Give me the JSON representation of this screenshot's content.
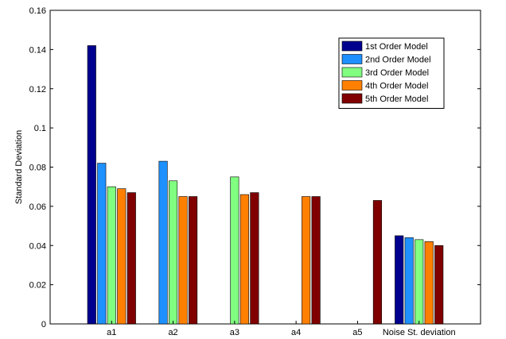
{
  "chart_data": {
    "type": "bar",
    "title": "",
    "xlabel": "",
    "ylabel": "Standard Deviation",
    "ylim": [
      0,
      0.16
    ],
    "yticks": [
      "0",
      "0.02",
      "0.04",
      "0.06",
      "0.08",
      "0.1",
      "0.12",
      "0.14",
      "0.16"
    ],
    "grid": false,
    "legend_position": "top-right",
    "categories": [
      "a1",
      "a2",
      "a3",
      "a4",
      "a5",
      "Noise St. deviation"
    ],
    "series": [
      {
        "name": "1st Order Model",
        "color": "#00008f",
        "values": [
          0.142,
          null,
          null,
          null,
          null,
          0.045
        ]
      },
      {
        "name": "2nd Order Model",
        "color": "#1e90ff",
        "values": [
          0.082,
          0.083,
          null,
          null,
          null,
          0.044
        ]
      },
      {
        "name": "3rd Order Model",
        "color": "#80ff80",
        "values": [
          0.07,
          0.073,
          0.075,
          null,
          null,
          0.043
        ]
      },
      {
        "name": "4th Order Model",
        "color": "#ff8000",
        "values": [
          0.069,
          0.065,
          0.066,
          0.065,
          null,
          0.042
        ]
      },
      {
        "name": "5th Order Model",
        "color": "#800000",
        "values": [
          0.067,
          0.065,
          0.067,
          0.065,
          0.063,
          0.04
        ]
      }
    ]
  }
}
